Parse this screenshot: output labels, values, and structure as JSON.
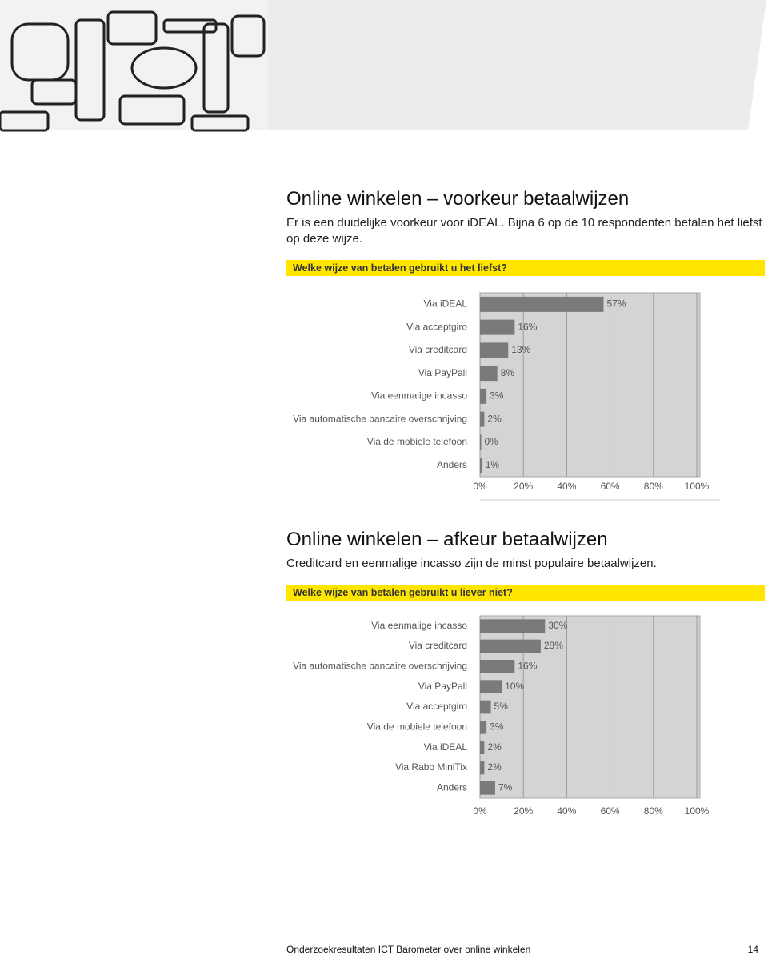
{
  "sections": [
    {
      "title": "Online winkelen – voorkeur betaalwijzen",
      "text": "Er is een duidelijke voorkeur voor iDEAL. Bijna 6 op de 10 respondenten betalen het liefst op deze wijze.",
      "question": "Welke wijze van betalen gebruikt u het liefst?"
    },
    {
      "title": "Online winkelen – afkeur betaalwijzen",
      "text": "Creditcard en eenmalige incasso zijn de minst populaire betaalwijzen.",
      "question": "Welke wijze van betalen gebruikt u liever niet?"
    }
  ],
  "chart_data": [
    {
      "type": "bar",
      "orientation": "horizontal",
      "categories": [
        "Via iDEAL",
        "Via acceptgiro",
        "Via creditcard",
        "Via PayPall",
        "Via eenmalige incasso",
        "Via automatische bancaire overschrijving",
        "Via de mobiele telefoon",
        "Anders"
      ],
      "values": [
        57,
        16,
        13,
        8,
        3,
        2,
        0,
        1
      ],
      "value_labels": [
        "57%",
        "16%",
        "13%",
        "8%",
        "3%",
        "2%",
        "0%",
        "1%"
      ],
      "color": "#7a7a7a",
      "grid": true,
      "xlim": [
        0,
        100
      ],
      "xticks": [
        {
          "value": 0,
          "label": "0%"
        },
        {
          "value": 20,
          "label": "20%"
        },
        {
          "value": 40,
          "label": "40%"
        },
        {
          "value": 60,
          "label": "60%"
        },
        {
          "value": 80,
          "label": "80%"
        },
        {
          "value": 100,
          "label": "100%"
        }
      ]
    },
    {
      "type": "bar",
      "orientation": "horizontal",
      "categories": [
        "Via eenmalige incasso",
        "Via creditcard",
        "Via automatische bancaire overschrijving",
        "Via PayPall",
        "Via acceptgiro",
        "Via de mobiele telefoon",
        "Via iDEAL",
        "Via Rabo MiniTix",
        "Anders"
      ],
      "values": [
        30,
        28,
        16,
        10,
        5,
        3,
        2,
        2,
        7
      ],
      "value_labels": [
        "30%",
        "28%",
        "16%",
        "10%",
        "5%",
        "3%",
        "2%",
        "2%",
        "7%"
      ],
      "color": "#7a7a7a",
      "grid": true,
      "xlim": [
        0,
        100
      ],
      "xticks": [
        {
          "value": 0,
          "label": "0%"
        },
        {
          "value": 20,
          "label": "20%"
        },
        {
          "value": 40,
          "label": "40%"
        },
        {
          "value": 60,
          "label": "60%"
        },
        {
          "value": 80,
          "label": "80%"
        },
        {
          "value": 100,
          "label": "100%"
        }
      ]
    }
  ],
  "footer": {
    "text": "Onderzoekresultaten ICT Barometer over online winkelen",
    "page": "14"
  }
}
